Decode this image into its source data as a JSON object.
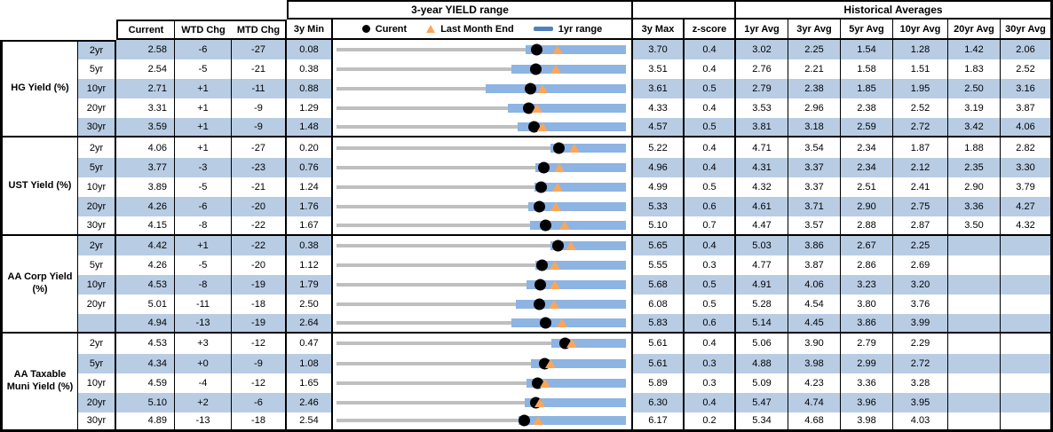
{
  "chart_data": {
    "type": "table",
    "title": "3-year YIELD range",
    "row_chart_type": "range strip: gray line = 3y min-max, blue bar = 1yr range, black dot = current, orange triangle = last month end",
    "legend": {
      "current_label": "Curent",
      "last_month_label": "Last Month End",
      "range_label": "1yr range"
    },
    "header": {
      "historical_title": "Historical Averages",
      "current": "Current",
      "wtd": "WTD Chg",
      "mtd": "MTD Chg",
      "min3y": "3y Min",
      "max3y": "3y Max",
      "zscore": "z-score",
      "avg_columns": [
        "1yr Avg",
        "3yr Avg",
        "5yr Avg",
        "10yr Avg",
        "20yr Avg",
        "30yr Avg"
      ]
    },
    "colors": {
      "stripe": "#B8CCE4",
      "bar_1yr": "#8DB4E2",
      "legend_bar": "#4E81BD",
      "marker_orange": "#F9A65B",
      "range_line_gray": "#BFBFBF",
      "dot_black": "#000000"
    },
    "groups": [
      {
        "label": "HG Yield (%)",
        "rows": [
          {
            "tenor": "2yr",
            "current": "2.58",
            "wtd": "-6",
            "mtd": "-27",
            "min": "0.08",
            "max": "3.70",
            "zscore": "0.4",
            "avgs": [
              "3.02",
              "2.25",
              "1.54",
              "1.28",
              "1.42",
              "2.06"
            ],
            "chart": {
              "min": 0.08,
              "max": 3.7,
              "bar_start": 2.45,
              "bar_end": 3.7,
              "current": 2.58,
              "last_month": 2.85
            }
          },
          {
            "tenor": "5yr",
            "current": "2.54",
            "wtd": "-5",
            "mtd": "-21",
            "min": "0.38",
            "max": "3.51",
            "zscore": "0.4",
            "avgs": [
              "2.76",
              "2.21",
              "1.58",
              "1.51",
              "1.83",
              "2.52"
            ],
            "chart": {
              "min": 0.38,
              "max": 3.51,
              "bar_start": 2.27,
              "bar_end": 3.51,
              "current": 2.54,
              "last_month": 2.75
            }
          },
          {
            "tenor": "10yr",
            "current": "2.71",
            "wtd": "+1",
            "mtd": "-11",
            "min": "0.88",
            "max": "3.61",
            "zscore": "0.5",
            "avgs": [
              "2.79",
              "2.38",
              "1.85",
              "1.95",
              "2.50",
              "3.16"
            ],
            "chart": {
              "min": 0.88,
              "max": 3.61,
              "bar_start": 2.29,
              "bar_end": 3.61,
              "current": 2.71,
              "last_month": 2.82
            }
          },
          {
            "tenor": "20yr",
            "current": "3.31",
            "wtd": "+1",
            "mtd": "-9",
            "min": "1.29",
            "max": "4.33",
            "zscore": "0.4",
            "avgs": [
              "3.53",
              "2.96",
              "2.38",
              "2.52",
              "3.19",
              "3.87"
            ],
            "chart": {
              "min": 1.29,
              "max": 4.33,
              "bar_start": 3.09,
              "bar_end": 4.33,
              "current": 3.31,
              "last_month": 3.4
            }
          },
          {
            "tenor": "30yr",
            "current": "3.59",
            "wtd": "+1",
            "mtd": "-9",
            "min": "1.48",
            "max": "4.57",
            "zscore": "0.5",
            "avgs": [
              "3.81",
              "3.18",
              "2.59",
              "2.72",
              "3.42",
              "4.06"
            ],
            "chart": {
              "min": 1.48,
              "max": 4.57,
              "bar_start": 3.41,
              "bar_end": 4.57,
              "current": 3.59,
              "last_month": 3.68
            }
          }
        ]
      },
      {
        "label": "UST Yield (%)",
        "rows": [
          {
            "tenor": "2yr",
            "current": "4.06",
            "wtd": "+1",
            "mtd": "-27",
            "min": "0.20",
            "max": "5.22",
            "zscore": "0.4",
            "avgs": [
              "4.71",
              "3.54",
              "2.34",
              "1.87",
              "1.88",
              "2.82"
            ],
            "chart": {
              "min": 0.2,
              "max": 5.22,
              "bar_start": 3.91,
              "bar_end": 5.22,
              "current": 4.06,
              "last_month": 4.33
            }
          },
          {
            "tenor": "5yr",
            "current": "3.77",
            "wtd": "-3",
            "mtd": "-23",
            "min": "0.76",
            "max": "4.96",
            "zscore": "0.4",
            "avgs": [
              "4.31",
              "3.37",
              "2.34",
              "2.12",
              "2.35",
              "3.30"
            ],
            "chart": {
              "min": 0.76,
              "max": 4.96,
              "bar_start": 3.65,
              "bar_end": 4.96,
              "current": 3.77,
              "last_month": 4.0
            }
          },
          {
            "tenor": "10yr",
            "current": "3.89",
            "wtd": "-5",
            "mtd": "-21",
            "min": "1.24",
            "max": "4.99",
            "zscore": "0.5",
            "avgs": [
              "4.32",
              "3.37",
              "2.51",
              "2.41",
              "2.90",
              "3.79"
            ],
            "chart": {
              "min": 1.24,
              "max": 4.99,
              "bar_start": 3.8,
              "bar_end": 4.99,
              "current": 3.89,
              "last_month": 4.1
            }
          },
          {
            "tenor": "20yr",
            "current": "4.26",
            "wtd": "-6",
            "mtd": "-20",
            "min": "1.76",
            "max": "5.33",
            "zscore": "0.6",
            "avgs": [
              "4.61",
              "3.71",
              "2.90",
              "2.75",
              "3.36",
              "4.27"
            ],
            "chart": {
              "min": 1.76,
              "max": 5.33,
              "bar_start": 4.12,
              "bar_end": 5.33,
              "current": 4.26,
              "last_month": 4.46
            }
          },
          {
            "tenor": "30yr",
            "current": "4.15",
            "wtd": "-8",
            "mtd": "-22",
            "min": "1.67",
            "max": "5.10",
            "zscore": "0.7",
            "avgs": [
              "4.47",
              "3.57",
              "2.88",
              "2.87",
              "3.50",
              "4.32"
            ],
            "chart": {
              "min": 1.67,
              "max": 5.1,
              "bar_start": 3.96,
              "bar_end": 5.1,
              "current": 4.15,
              "last_month": 4.37
            }
          }
        ]
      },
      {
        "label": "AA Corp Yield (%)",
        "rows": [
          {
            "tenor": "2yr",
            "current": "4.42",
            "wtd": "+1",
            "mtd": "-22",
            "min": "0.38",
            "max": "5.65",
            "zscore": "0.4",
            "avgs": [
              "5.03",
              "3.86",
              "2.67",
              "2.25",
              "",
              ""
            ],
            "chart": {
              "min": 0.38,
              "max": 5.65,
              "bar_start": 4.27,
              "bar_end": 5.65,
              "current": 4.42,
              "last_month": 4.64
            }
          },
          {
            "tenor": "5yr",
            "current": "4.26",
            "wtd": "-5",
            "mtd": "-20",
            "min": "1.12",
            "max": "5.55",
            "zscore": "0.3",
            "avgs": [
              "4.77",
              "3.87",
              "2.86",
              "2.69",
              "",
              ""
            ],
            "chart": {
              "min": 1.12,
              "max": 5.55,
              "bar_start": 4.17,
              "bar_end": 5.55,
              "current": 4.26,
              "last_month": 4.46
            }
          },
          {
            "tenor": "10yr",
            "current": "4.53",
            "wtd": "-8",
            "mtd": "-19",
            "min": "1.79",
            "max": "5.68",
            "zscore": "0.5",
            "avgs": [
              "4.91",
              "4.06",
              "3.23",
              "3.20",
              "",
              ""
            ],
            "chart": {
              "min": 1.79,
              "max": 5.68,
              "bar_start": 4.34,
              "bar_end": 5.68,
              "current": 4.53,
              "last_month": 4.72
            }
          },
          {
            "tenor": "20yr",
            "current": "5.01",
            "wtd": "-11",
            "mtd": "-18",
            "min": "2.50",
            "max": "6.08",
            "zscore": "0.5",
            "avgs": [
              "5.28",
              "4.54",
              "3.80",
              "3.76",
              "",
              ""
            ],
            "chart": {
              "min": 2.5,
              "max": 6.08,
              "bar_start": 4.72,
              "bar_end": 6.08,
              "current": 5.01,
              "last_month": 5.19
            }
          },
          {
            "tenor": "",
            "current": "4.94",
            "wtd": "-13",
            "mtd": "-19",
            "min": "2.64",
            "max": "5.83",
            "zscore": "0.6",
            "avgs": [
              "5.14",
              "4.45",
              "3.86",
              "3.99",
              "",
              ""
            ],
            "chart": {
              "min": 2.64,
              "max": 5.83,
              "bar_start": 4.57,
              "bar_end": 5.83,
              "current": 4.94,
              "last_month": 5.13
            }
          }
        ]
      },
      {
        "label": "AA Taxable Muni Yield (%)",
        "rows": [
          {
            "tenor": "2yr",
            "current": "4.53",
            "wtd": "+3",
            "mtd": "-12",
            "min": "0.47",
            "max": "5.61",
            "zscore": "0.4",
            "avgs": [
              "5.06",
              "3.90",
              "2.79",
              "2.29",
              "",
              ""
            ],
            "chart": {
              "min": 0.47,
              "max": 5.61,
              "bar_start": 4.28,
              "bar_end": 5.61,
              "current": 4.53,
              "last_month": 4.65
            }
          },
          {
            "tenor": "5yr",
            "current": "4.34",
            "wtd": "+0",
            "mtd": "-9",
            "min": "1.08",
            "max": "5.61",
            "zscore": "0.3",
            "avgs": [
              "4.88",
              "3.98",
              "2.99",
              "2.72",
              "",
              ""
            ],
            "chart": {
              "min": 1.08,
              "max": 5.61,
              "bar_start": 4.13,
              "bar_end": 5.61,
              "current": 4.34,
              "last_month": 4.43
            }
          },
          {
            "tenor": "10yr",
            "current": "4.59",
            "wtd": "-4",
            "mtd": "-12",
            "min": "1.65",
            "max": "5.89",
            "zscore": "0.3",
            "avgs": [
              "5.09",
              "4.23",
              "3.36",
              "3.28",
              "",
              ""
            ],
            "chart": {
              "min": 1.65,
              "max": 5.89,
              "bar_start": 4.43,
              "bar_end": 5.89,
              "current": 4.59,
              "last_month": 4.71
            }
          },
          {
            "tenor": "20yr",
            "current": "5.10",
            "wtd": "+2",
            "mtd": "-6",
            "min": "2.46",
            "max": "6.30",
            "zscore": "0.4",
            "avgs": [
              "5.47",
              "4.74",
              "3.96",
              "3.95",
              "",
              ""
            ],
            "chart": {
              "min": 2.46,
              "max": 6.3,
              "bar_start": 4.96,
              "bar_end": 6.3,
              "current": 5.1,
              "last_month": 5.16
            }
          },
          {
            "tenor": "30yr",
            "current": "4.89",
            "wtd": "-13",
            "mtd": "-18",
            "min": "2.54",
            "max": "6.17",
            "zscore": "0.2",
            "avgs": [
              "5.34",
              "4.68",
              "3.98",
              "4.03",
              "",
              ""
            ],
            "chart": {
              "min": 2.54,
              "max": 6.17,
              "bar_start": 4.82,
              "bar_end": 6.17,
              "current": 4.89,
              "last_month": 5.07
            }
          }
        ]
      }
    ]
  }
}
